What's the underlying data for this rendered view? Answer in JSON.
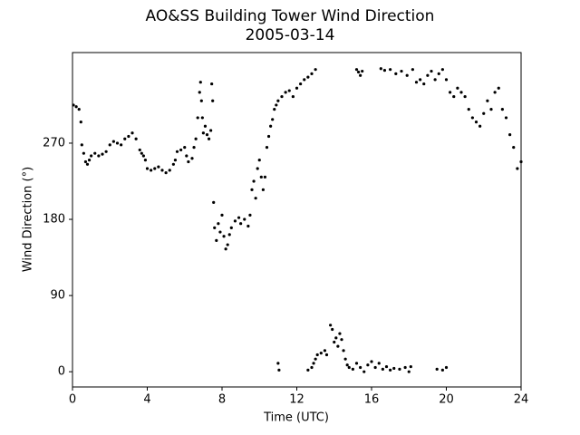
{
  "chart_data": {
    "type": "scatter",
    "title": "AO&SS Building Tower Wind Direction",
    "subtitle": "2005-03-14",
    "x_label": "Time (UTC)",
    "y_label": "Wind Direction (°)",
    "color": "#000000",
    "xlim": [
      0,
      24
    ],
    "xticks": [
      0,
      4,
      8,
      12,
      16,
      20,
      24
    ],
    "ylim": [
      -18,
      377
    ],
    "yticks": [
      0,
      90,
      180,
      270
    ],
    "x": [
      0.05,
      0.2,
      0.35,
      0.45,
      0.5,
      0.6,
      0.7,
      0.8,
      0.9,
      1.0,
      1.2,
      1.4,
      1.6,
      1.8,
      2.0,
      2.2,
      2.4,
      2.6,
      2.8,
      3.0,
      3.2,
      3.4,
      3.6,
      3.7,
      3.8,
      3.9,
      4.0,
      4.2,
      4.4,
      4.6,
      4.8,
      5.0,
      5.2,
      5.4,
      5.5,
      5.6,
      5.8,
      6.0,
      6.1,
      6.2,
      6.4,
      6.5,
      6.6,
      6.7,
      6.8,
      6.85,
      6.9,
      6.95,
      7.0,
      7.1,
      7.2,
      7.3,
      7.4,
      7.45,
      7.5,
      7.55,
      7.6,
      7.7,
      7.8,
      7.9,
      8.0,
      8.1,
      8.2,
      8.3,
      8.4,
      8.5,
      8.7,
      8.9,
      9.0,
      9.2,
      9.4,
      9.5,
      9.6,
      9.7,
      9.8,
      9.9,
      10.0,
      10.1,
      10.2,
      10.3,
      10.4,
      10.5,
      10.6,
      10.7,
      10.8,
      10.9,
      11.0,
      11.2,
      11.4,
      11.6,
      11.8,
      12.0,
      12.2,
      12.4,
      12.6,
      12.8,
      13.0,
      11.0,
      11.05,
      12.6,
      12.8,
      12.9,
      13.0,
      13.1,
      13.3,
      13.5,
      13.6,
      13.8,
      13.9,
      14.0,
      14.1,
      14.2,
      14.3,
      14.4,
      14.5,
      14.6,
      14.7,
      14.8,
      15.0,
      15.2,
      15.4,
      15.6,
      15.8,
      16.0,
      16.2,
      16.4,
      16.6,
      16.8,
      17.0,
      17.2,
      17.5,
      17.8,
      18.0,
      18.1,
      19.5,
      19.8,
      20.0,
      15.2,
      15.3,
      15.4,
      15.5,
      16.5,
      16.7,
      17.0,
      17.3,
      17.6,
      17.9,
      18.2,
      18.4,
      18.6,
      18.8,
      19.0,
      19.2,
      19.4,
      19.6,
      19.8,
      20.0,
      20.2,
      20.4,
      20.6,
      20.8,
      21.0,
      21.2,
      21.4,
      21.6,
      21.8,
      22.0,
      22.2,
      22.4,
      22.6,
      22.8,
      23.0,
      23.2,
      23.4,
      23.6,
      23.8,
      24.0
    ],
    "y": [
      315,
      313,
      310,
      295,
      268,
      258,
      248,
      245,
      250,
      255,
      258,
      255,
      257,
      260,
      268,
      272,
      270,
      268,
      275,
      278,
      282,
      275,
      262,
      258,
      255,
      250,
      240,
      238,
      240,
      242,
      238,
      235,
      238,
      245,
      250,
      260,
      262,
      265,
      255,
      248,
      252,
      265,
      275,
      300,
      330,
      342,
      320,
      300,
      282,
      290,
      280,
      275,
      285,
      340,
      320,
      200,
      170,
      155,
      175,
      165,
      185,
      160,
      145,
      150,
      162,
      170,
      178,
      182,
      175,
      180,
      172,
      185,
      215,
      225,
      205,
      240,
      250,
      230,
      215,
      230,
      265,
      278,
      290,
      298,
      310,
      315,
      320,
      325,
      330,
      332,
      325,
      335,
      340,
      345,
      348,
      352,
      357,
      10,
      2,
      2,
      5,
      10,
      15,
      20,
      22,
      25,
      20,
      55,
      50,
      35,
      40,
      30,
      45,
      38,
      25,
      15,
      8,
      5,
      3,
      10,
      5,
      0,
      8,
      12,
      5,
      10,
      3,
      6,
      2,
      4,
      3,
      5,
      0,
      6,
      3,
      2,
      5,
      357,
      354,
      350,
      355,
      358,
      356,
      357,
      352,
      355,
      350,
      357,
      342,
      345,
      340,
      350,
      355,
      345,
      352,
      357,
      345,
      330,
      325,
      335,
      330,
      325,
      310,
      300,
      295,
      290,
      305,
      320,
      310,
      330,
      335,
      310,
      300,
      280,
      265,
      240,
      248
    ]
  }
}
